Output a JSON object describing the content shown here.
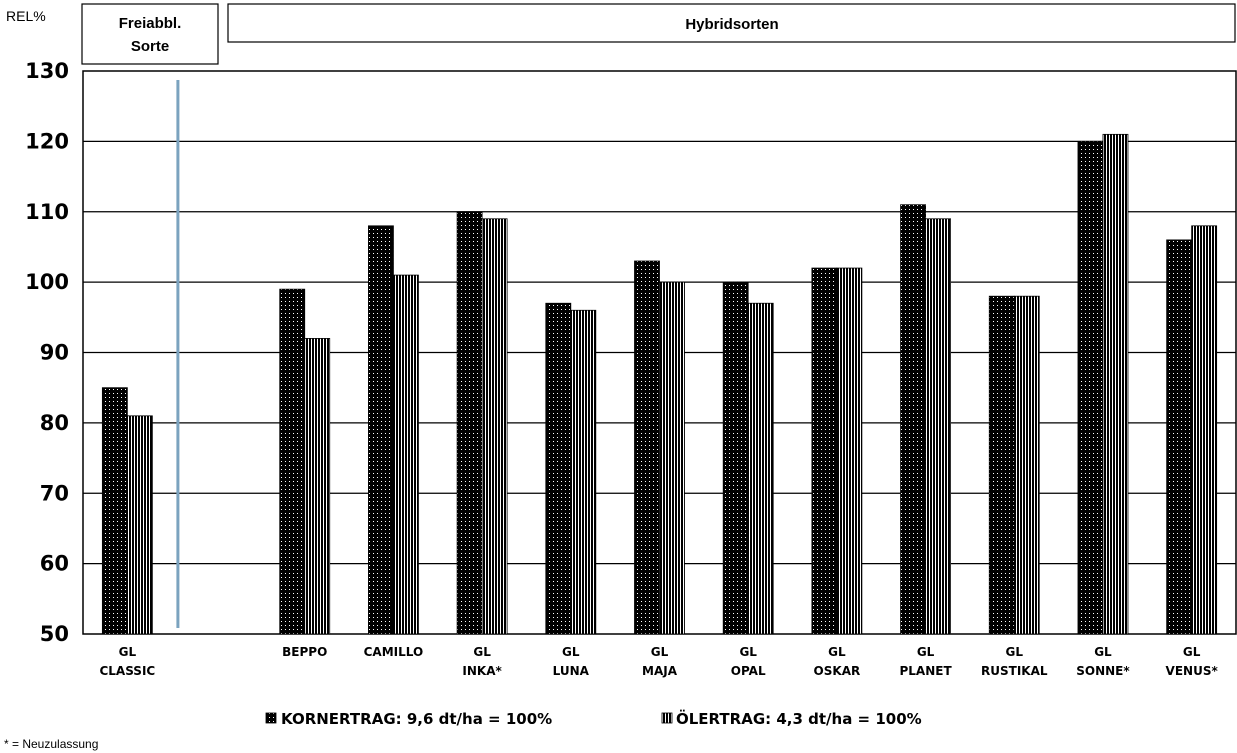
{
  "chart_data": {
    "type": "bar",
    "ylabel": "REL%",
    "ylim": [
      50,
      130
    ],
    "yticks": [
      50,
      60,
      70,
      80,
      90,
      100,
      110,
      120,
      130
    ],
    "grid": true,
    "group_headers": [
      {
        "label_lines": [
          "Freiabbl.",
          "Sorte"
        ]
      },
      {
        "label_lines": [
          "Hybridsorten"
        ]
      }
    ],
    "categories": [
      [
        "GL",
        "CLASSIC"
      ],
      [
        ""
      ],
      [
        "BEPPO"
      ],
      [
        "CAMILLO"
      ],
      [
        "GL",
        "INKA*"
      ],
      [
        "GL",
        "LUNA"
      ],
      [
        "GL",
        "MAJA"
      ],
      [
        "GL",
        "OPAL"
      ],
      [
        "GL",
        "OSKAR"
      ],
      [
        "GL",
        "PLANET"
      ],
      [
        "GL",
        "RUSTIKAL"
      ],
      [
        "GL",
        "SONNE*"
      ],
      [
        "GL",
        "VENUS*"
      ]
    ],
    "series": [
      {
        "name": "KORNERTRAG: 9,6 dt/ha = 100%",
        "pattern": "dots-on-black",
        "values": [
          85,
          null,
          99,
          108,
          110,
          97,
          103,
          100,
          102,
          111,
          98,
          120,
          106
        ]
      },
      {
        "name": "ÖLERTRAG: 4,3 dt/ha = 100%",
        "pattern": "vertical-stripes",
        "values": [
          81,
          null,
          92,
          101,
          109,
          96,
          100,
          97,
          102,
          109,
          98,
          121,
          108
        ]
      }
    ],
    "separator_color": "#7ba3bf",
    "legend_position": "bottom",
    "footnote": "* = Neuzulassung"
  }
}
